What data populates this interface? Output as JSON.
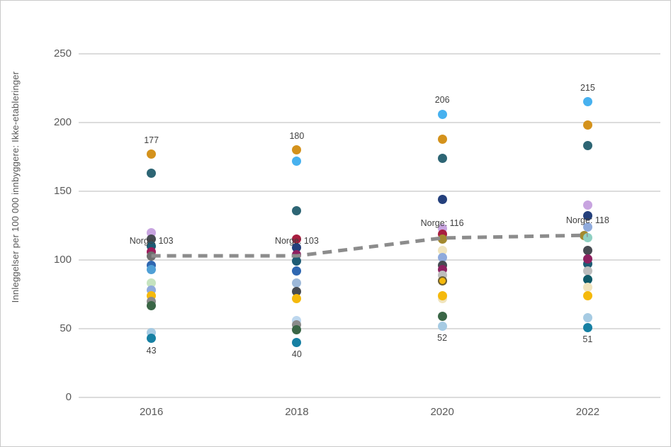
{
  "chart_data": {
    "type": "scatter",
    "title": "",
    "xlabel": "",
    "ylabel": "Innleggelser per 100 000 innbyggere: Ikke-etableringer",
    "categories": [
      "2016",
      "2018",
      "2020",
      "2022"
    ],
    "ylim": [
      0,
      250
    ],
    "yticks": [
      0,
      50,
      100,
      150,
      200,
      250
    ],
    "grid": "horizontal",
    "grid_color": "#dcdcdc",
    "tick_color": "#595959",
    "annotation_color": "#404040",
    "norge_line": {
      "name": "Norge",
      "values": [
        103,
        103,
        116,
        118
      ],
      "labels": [
        "Norge: 103",
        "Norge: 103",
        "Norge: 116",
        "Norge: 118"
      ],
      "color": "#8c8c8c",
      "style": "dashed"
    },
    "series_points": [
      {
        "year": "2016",
        "dots": [
          {
            "v": 177,
            "c": "#d4921c",
            "label": "177",
            "label_pos": "above"
          },
          {
            "v": 163,
            "c": "#2d6574"
          },
          {
            "v": 120,
            "c": "#c8a4e0"
          },
          {
            "v": 115,
            "c": "#474b52"
          },
          {
            "v": 110,
            "c": "#1d5b74"
          },
          {
            "v": 106,
            "c": "#9e1c5c"
          },
          {
            "v": 103,
            "c": "#6f6f6f"
          },
          {
            "v": 96,
            "c": "#2f67b1"
          },
          {
            "v": 93,
            "c": "#4f9fd6"
          },
          {
            "v": 83,
            "c": "#c5e3bf"
          },
          {
            "v": 78,
            "c": "#8faadc"
          },
          {
            "v": 74,
            "c": "#f5b90b"
          },
          {
            "v": 70,
            "c": "#8b8b8b"
          },
          {
            "v": 67,
            "c": "#3a6646"
          },
          {
            "v": 47,
            "c": "#a6cbe3"
          },
          {
            "v": 43,
            "c": "#1680a3",
            "label": "43",
            "label_pos": "below"
          }
        ]
      },
      {
        "year": "2018",
        "dots": [
          {
            "v": 180,
            "c": "#d4921c",
            "label": "180",
            "label_pos": "above"
          },
          {
            "v": 172,
            "c": "#47b1ef"
          },
          {
            "v": 136,
            "c": "#2d6574"
          },
          {
            "v": 115,
            "c": "#a81e3f"
          },
          {
            "v": 109,
            "c": "#24407c"
          },
          {
            "v": 104,
            "c": "#8e2161"
          },
          {
            "v": 99,
            "c": "#1d5b74"
          },
          {
            "v": 92,
            "c": "#2f67b1"
          },
          {
            "v": 83,
            "c": "#9db8d9"
          },
          {
            "v": 77,
            "c": "#474b52"
          },
          {
            "v": 72,
            "c": "#f5b90b"
          },
          {
            "v": 56,
            "c": "#bdd7ee"
          },
          {
            "v": 53,
            "c": "#8b8b8b"
          },
          {
            "v": 49,
            "c": "#3a6646"
          },
          {
            "v": 40,
            "c": "#1680a3",
            "label": "40",
            "label_pos": "below"
          }
        ]
      },
      {
        "year": "2020",
        "dots": [
          {
            "v": 206,
            "c": "#47b1ef",
            "label": "206",
            "label_pos": "above"
          },
          {
            "v": 188,
            "c": "#d4921c"
          },
          {
            "v": 174,
            "c": "#2d6574"
          },
          {
            "v": 144,
            "c": "#24407c"
          },
          {
            "v": 123,
            "c": "#c8a4e0"
          },
          {
            "v": 119,
            "c": "#a81e3f"
          },
          {
            "v": 115,
            "c": "#a3892f"
          },
          {
            "v": 107,
            "c": "#f0e4bd"
          },
          {
            "v": 102,
            "c": "#8faadc"
          },
          {
            "v": 96,
            "c": "#474b52"
          },
          {
            "v": 93,
            "c": "#8e2161"
          },
          {
            "v": 89,
            "c": "#bdbdbd"
          },
          {
            "v": 85,
            "c": "#f5b90b",
            "ring": "#6e5f31"
          },
          {
            "v": 72,
            "c": "#f0e4bd"
          },
          {
            "v": 74,
            "c": "#f5b90b"
          },
          {
            "v": 59,
            "c": "#3a6646"
          },
          {
            "v": 52,
            "c": "#a6cbe3",
            "label": "52",
            "label_pos": "below"
          }
        ]
      },
      {
        "year": "2022",
        "dots": [
          {
            "v": 215,
            "c": "#47b1ef",
            "label": "215",
            "label_pos": "above"
          },
          {
            "v": 198,
            "c": "#d4921c"
          },
          {
            "v": 183,
            "c": "#2d6574"
          },
          {
            "v": 140,
            "c": "#c8a4e0"
          },
          {
            "v": 132,
            "c": "#24407c"
          },
          {
            "v": 124,
            "c": "#8faadc"
          },
          {
            "v": 118,
            "c": "#a3892f",
            "dx": -5
          },
          {
            "v": 116,
            "c": "#8fd0c2"
          },
          {
            "v": 107,
            "c": "#474b52"
          },
          {
            "v": 97,
            "c": "#1d5b74"
          },
          {
            "v": 101,
            "c": "#8e2161"
          },
          {
            "v": 92,
            "c": "#bdbdbd"
          },
          {
            "v": 86,
            "c": "#0f5a68"
          },
          {
            "v": 80,
            "c": "#f0e4bd"
          },
          {
            "v": 74,
            "c": "#f5b90b"
          },
          {
            "v": 58,
            "c": "#a6cbe3"
          },
          {
            "v": 51,
            "c": "#1680a3",
            "label": "51",
            "label_pos": "below"
          }
        ]
      }
    ]
  }
}
